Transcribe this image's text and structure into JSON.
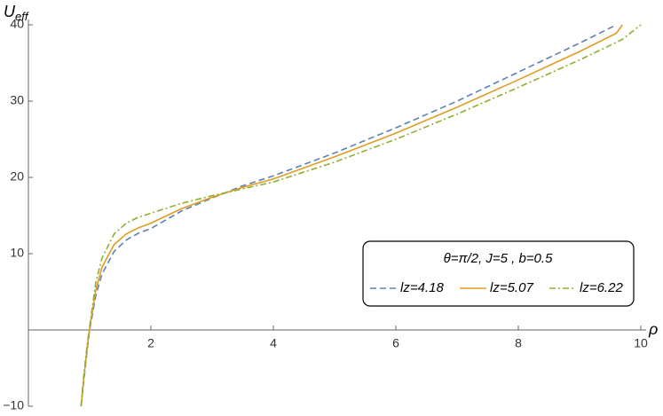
{
  "chart_data": {
    "type": "line",
    "y_label": {
      "main": "U",
      "sub": "eff"
    },
    "x_label": "ρ",
    "legend_title": "θ=π/2,  J=5 ,  b=0.5",
    "x": [
      0.86,
      0.9,
      0.95,
      1.0,
      1.1,
      1.2,
      1.4,
      1.6,
      1.8,
      2.0,
      2.5,
      3.0,
      3.5,
      4.0,
      5.0,
      6.0,
      7.0,
      8.0,
      9.0,
      9.6,
      9.7,
      10
    ],
    "series": [
      {
        "name": "lz=4.18",
        "color": "#5e81b5",
        "dash": "dashed",
        "values": [
          -10,
          -7,
          -3.3,
          0,
          4.5,
          7.3,
          10.3,
          11.8,
          12.7,
          13.3,
          15.6,
          17.3,
          18.9,
          20.2,
          23.2,
          26.5,
          30,
          33.8,
          37.6,
          40,
          null,
          null
        ]
      },
      {
        "name": "lz=5.07",
        "color": "#e19c24",
        "dash": "solid",
        "values": [
          -10,
          -6.7,
          -3,
          0.2,
          5.2,
          8.2,
          11.2,
          12.6,
          13.4,
          14.0,
          15.9,
          17.4,
          18.7,
          19.8,
          22.7,
          25.8,
          29.2,
          32.8,
          36.5,
          38.9,
          40,
          null
        ]
      },
      {
        "name": "lz=6.22",
        "color": "#8fb032",
        "dash": "dashdot",
        "values": [
          -10,
          -6.3,
          -2.6,
          0.5,
          6.2,
          9.4,
          12.6,
          14.0,
          14.8,
          15.3,
          16.6,
          17.6,
          18.5,
          19.4,
          22.0,
          25.0,
          28.3,
          31.8,
          35.4,
          37.7,
          38.1,
          40
        ]
      }
    ],
    "xlim": [
      0,
      10
    ],
    "ylim": [
      -10,
      40
    ],
    "xticks": [
      2,
      4,
      6,
      8,
      10
    ],
    "yticks": [
      {
        "value": -10,
        "label": "−10"
      },
      10,
      20,
      30,
      40
    ],
    "legend_position": "lower-right"
  }
}
